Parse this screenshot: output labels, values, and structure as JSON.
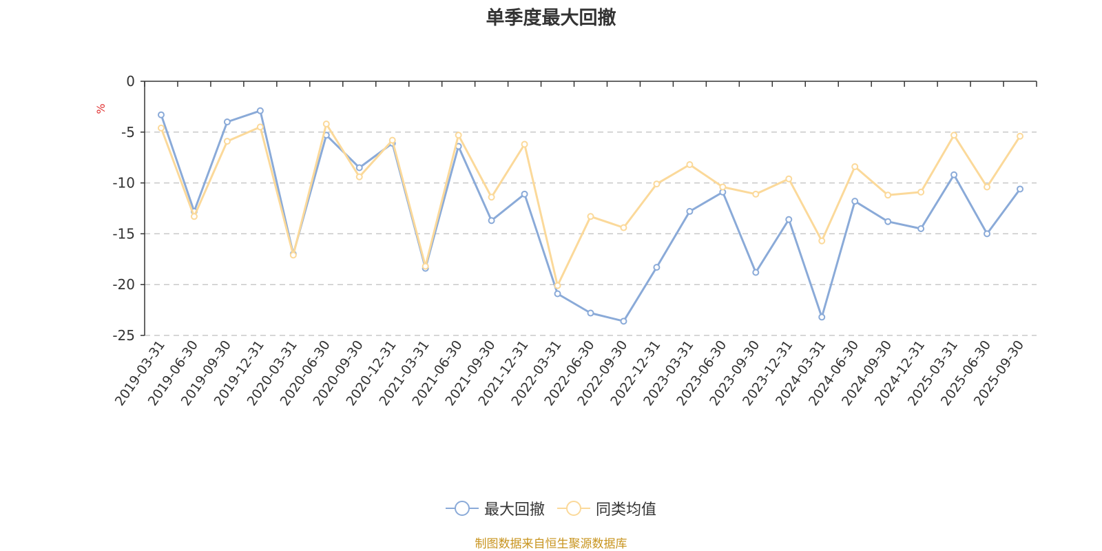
{
  "chart_data": {
    "type": "line",
    "title": "单季度最大回撤",
    "ylabel": "%",
    "xlabel": "",
    "ylim": [
      -25,
      0
    ],
    "yticks": [
      0,
      -5,
      -10,
      -15,
      -20,
      -25
    ],
    "grid": true,
    "legend_position": "bottom-center",
    "categories": [
      "2019-03-31",
      "2019-06-30",
      "2019-09-30",
      "2019-12-31",
      "2020-03-31",
      "2020-06-30",
      "2020-09-30",
      "2020-12-31",
      "2021-03-31",
      "2021-06-30",
      "2021-09-30",
      "2021-12-31",
      "2022-03-31",
      "2022-06-30",
      "2022-09-30",
      "2022-12-31",
      "2023-03-31",
      "2023-06-30",
      "2023-09-30",
      "2023-12-31",
      "2024-03-31",
      "2024-06-30",
      "2024-09-30",
      "2024-12-31",
      "2025-03-31",
      "2025-06-30",
      "2025-09-30"
    ],
    "series": [
      {
        "name": "最大回撤",
        "color": "#8aaad8",
        "values": [
          -3.3,
          -12.8,
          -4.0,
          -2.9,
          -17.0,
          -5.3,
          -8.5,
          -6.1,
          -18.4,
          -6.4,
          -13.7,
          -11.1,
          -20.9,
          -22.8,
          -23.6,
          -18.3,
          -12.8,
          -10.9,
          -18.8,
          -13.6,
          -23.2,
          -11.8,
          -13.8,
          -14.5,
          -9.2,
          -15.0,
          -10.6
        ]
      },
      {
        "name": "同类均值",
        "color": "#fbd99a",
        "values": [
          -4.6,
          -13.3,
          -5.9,
          -4.5,
          -17.1,
          -4.2,
          -9.4,
          -5.8,
          -18.2,
          -5.3,
          -11.4,
          -6.2,
          -20.1,
          -13.3,
          -14.4,
          -10.1,
          -8.2,
          -10.4,
          -11.1,
          -9.6,
          -15.7,
          -8.4,
          -11.2,
          -10.9,
          -5.3,
          -10.4,
          -5.4
        ]
      }
    ]
  },
  "source_text": "制图数据来自恒生聚源数据库",
  "source_color": "#c8941f",
  "ylabel_color": "#e03030",
  "axis_color": "#333333",
  "grid_color": "#c8c8c8"
}
